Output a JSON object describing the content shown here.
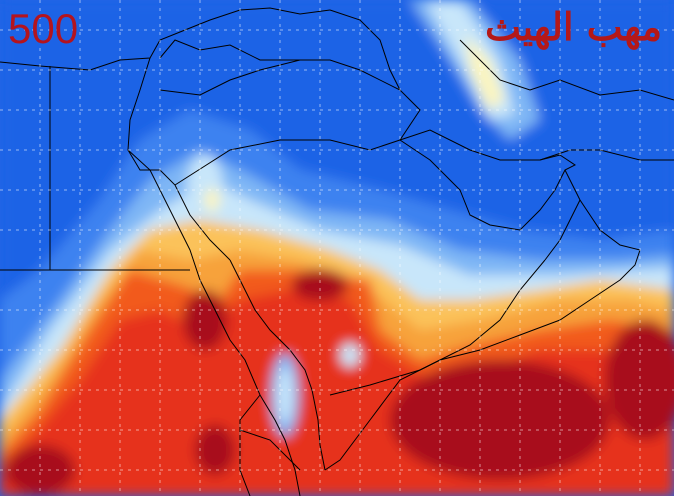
{
  "map": {
    "pressure_level": "500",
    "watermark": "مهب الهيث",
    "colors": {
      "ocean_blue": "#1f64e6",
      "mid_blue": "#3c82f0",
      "light_blue": "#7eb6f5",
      "pale_blue": "#c8e6fa",
      "cream": "#fbf5c0",
      "light_orange": "#fbc25a",
      "orange": "#f7a23a",
      "red_orange": "#f25a1e",
      "red": "#e6321e",
      "dark_red": "#a8101a",
      "borders": "#000000",
      "grid": "#ffffff",
      "label": "#b4141e"
    }
  }
}
